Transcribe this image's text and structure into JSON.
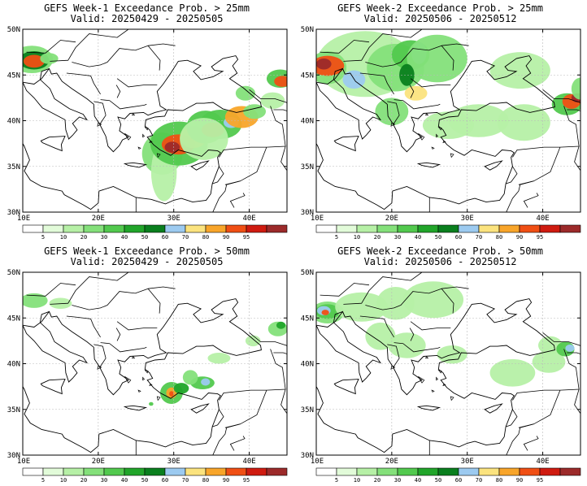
{
  "panels": [
    {
      "id": "p1",
      "title": "GEFS Week-1 Exceedance Prob. > 25mm",
      "subtitle": "Valid: 20250429 - 20250505"
    },
    {
      "id": "p2",
      "title": "GEFS Week-2 Exceedance Prob. > 25mm",
      "subtitle": "Valid: 20250506 - 20250512"
    },
    {
      "id": "p3",
      "title": "GEFS Week-1 Exceedance Prob. > 50mm",
      "subtitle": "Valid: 20250429 - 20250505"
    },
    {
      "id": "p4",
      "title": "GEFS Week-2 Exceedance Prob. > 50mm",
      "subtitle": "Valid: 20250506 - 20250512"
    }
  ],
  "axes": {
    "lat_labels": [
      "50N",
      "45N",
      "40N",
      "35N",
      "30N"
    ],
    "lon_labels": [
      "10E",
      "20E",
      "30E",
      "40E"
    ]
  },
  "colorbar": {
    "labels": [
      "5",
      "10",
      "20",
      "30",
      "40",
      "50",
      "60",
      "70",
      "80",
      "90",
      "95"
    ],
    "colors": [
      "#ffffff",
      "#e2fbd9",
      "#b6f0a6",
      "#84e07a",
      "#52c94e",
      "#21a52a",
      "#0a7f1e",
      "#9ccaf0",
      "#fbe37e",
      "#f8a52a",
      "#f04f14",
      "#cf1b10",
      "#9c2a2a"
    ]
  }
}
